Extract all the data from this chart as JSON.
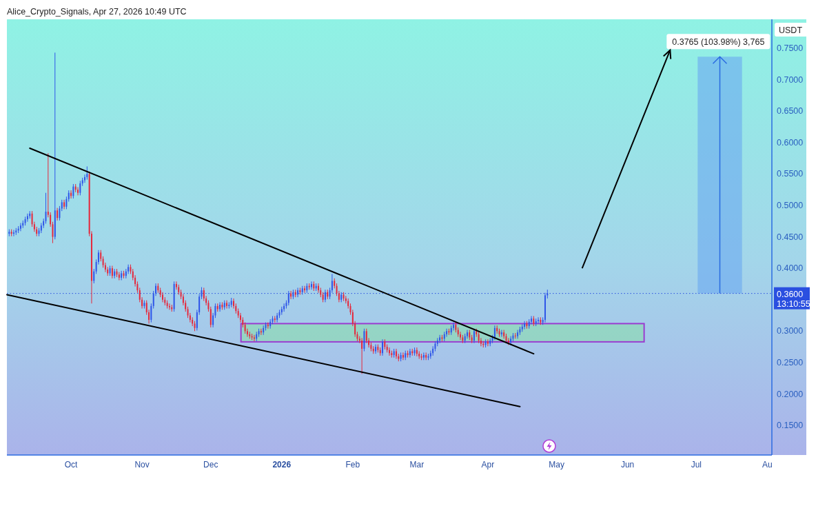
{
  "chart_data": {
    "type": "candlestick",
    "title": "Alice_Crypto_Signals, Apr 27, 2026 10:49 UTC",
    "ylabel": "USDT",
    "xlim": [
      "2025-09-03",
      "2026-08-03"
    ],
    "xticks": [
      {
        "value": "2025-10-01",
        "label": "Oct"
      },
      {
        "value": "2025-11-01",
        "label": "Nov"
      },
      {
        "value": "2025-12-01",
        "label": "Dec"
      },
      {
        "value": "2026-01-01",
        "label": "2026"
      },
      {
        "value": "2026-02-01",
        "label": "Feb"
      },
      {
        "value": "2026-03-01",
        "label": "Mar"
      },
      {
        "value": "2026-04-01",
        "label": "Apr"
      },
      {
        "value": "2026-05-01",
        "label": "May"
      },
      {
        "value": "2026-06-01",
        "label": "Jun"
      },
      {
        "value": "2026-07-01",
        "label": "Jul"
      },
      {
        "value": "2026-08-01",
        "label": "Au"
      }
    ],
    "ylim": [
      0.103,
      0.796
    ],
    "yticks": [
      {
        "value": 0.15,
        "label": "0.1500"
      },
      {
        "value": 0.2,
        "label": "0.2000"
      },
      {
        "value": 0.25,
        "label": "0.2500"
      },
      {
        "value": 0.3,
        "label": "0.3000"
      },
      {
        "value": 0.4,
        "label": "0.4000"
      },
      {
        "value": 0.45,
        "label": "0.4500"
      },
      {
        "value": 0.5,
        "label": "0.5000"
      },
      {
        "value": 0.55,
        "label": "0.5500"
      },
      {
        "value": 0.6,
        "label": "0.6000"
      },
      {
        "value": 0.65,
        "label": "0.6500"
      },
      {
        "value": 0.7,
        "label": "0.7000"
      },
      {
        "value": 0.75,
        "label": "0.7500"
      }
    ],
    "x": [
      "2025-09-04",
      "2025-09-05",
      "2025-09-06",
      "2025-09-07",
      "2025-09-08",
      "2025-09-09",
      "2025-09-10",
      "2025-09-11",
      "2025-09-12",
      "2025-09-13",
      "2025-09-14",
      "2025-09-15",
      "2025-09-16",
      "2025-09-17",
      "2025-09-18",
      "2025-09-19",
      "2025-09-20",
      "2025-09-21",
      "2025-09-22",
      "2025-09-23",
      "2025-09-24",
      "2025-09-25",
      "2025-09-26",
      "2025-09-27",
      "2025-09-28",
      "2025-09-29",
      "2025-09-30",
      "2025-10-01",
      "2025-10-02",
      "2025-10-03",
      "2025-10-04",
      "2025-10-05",
      "2025-10-06",
      "2025-10-07",
      "2025-10-08",
      "2025-10-09",
      "2025-10-10",
      "2025-10-11",
      "2025-10-12",
      "2025-10-13",
      "2025-10-14",
      "2025-10-15",
      "2025-10-16",
      "2025-10-17",
      "2025-10-18",
      "2025-10-19",
      "2025-10-20",
      "2025-10-21",
      "2025-10-22",
      "2025-10-23",
      "2025-10-24",
      "2025-10-25",
      "2025-10-26",
      "2025-10-27",
      "2025-10-28",
      "2025-10-29",
      "2025-10-30",
      "2025-10-31",
      "2025-11-01",
      "2025-11-02",
      "2025-11-03",
      "2025-11-04",
      "2025-11-05",
      "2025-11-06",
      "2025-11-07",
      "2025-11-08",
      "2025-11-09",
      "2025-11-10",
      "2025-11-11",
      "2025-11-12",
      "2025-11-13",
      "2025-11-14",
      "2025-11-15",
      "2025-11-16",
      "2025-11-17",
      "2025-11-18",
      "2025-11-19",
      "2025-11-20",
      "2025-11-21",
      "2025-11-22",
      "2025-11-23",
      "2025-11-24",
      "2025-11-25",
      "2025-11-26",
      "2025-11-27",
      "2025-11-28",
      "2025-11-29",
      "2025-11-30",
      "2025-12-01",
      "2025-12-02",
      "2025-12-03",
      "2025-12-04",
      "2025-12-05",
      "2025-12-06",
      "2025-12-07",
      "2025-12-08",
      "2025-12-09",
      "2025-12-10",
      "2025-12-11",
      "2025-12-12",
      "2025-12-13",
      "2025-12-14",
      "2025-12-15",
      "2025-12-16",
      "2025-12-17",
      "2025-12-18",
      "2025-12-19",
      "2025-12-20",
      "2025-12-21",
      "2025-12-22",
      "2025-12-23",
      "2025-12-24",
      "2025-12-25",
      "2025-12-26",
      "2025-12-27",
      "2025-12-28",
      "2025-12-29",
      "2025-12-30",
      "2025-12-31",
      "2026-01-01",
      "2026-01-02",
      "2026-01-03",
      "2026-01-04",
      "2026-01-05",
      "2026-01-06",
      "2026-01-07",
      "2026-01-08",
      "2026-01-09",
      "2026-01-10",
      "2026-01-11",
      "2026-01-12",
      "2026-01-13",
      "2026-01-14",
      "2026-01-15",
      "2026-01-16",
      "2026-01-17",
      "2026-01-18",
      "2026-01-19",
      "2026-01-20",
      "2026-01-21",
      "2026-01-22",
      "2026-01-23",
      "2026-01-24",
      "2026-01-25",
      "2026-01-26",
      "2026-01-27",
      "2026-01-28",
      "2026-01-29",
      "2026-01-30",
      "2026-01-31",
      "2026-02-01",
      "2026-02-02",
      "2026-02-03",
      "2026-02-04",
      "2026-02-05",
      "2026-02-06",
      "2026-02-07",
      "2026-02-08",
      "2026-02-09",
      "2026-02-10",
      "2026-02-11",
      "2026-02-12",
      "2026-02-13",
      "2026-02-14",
      "2026-02-15",
      "2026-02-16",
      "2026-02-17",
      "2026-02-18",
      "2026-02-19",
      "2026-02-20",
      "2026-02-21",
      "2026-02-22",
      "2026-02-23",
      "2026-02-24",
      "2026-02-25",
      "2026-02-26",
      "2026-02-27",
      "2026-02-28",
      "2026-03-01",
      "2026-03-02",
      "2026-03-03",
      "2026-03-04",
      "2026-03-05",
      "2026-03-06",
      "2026-03-07",
      "2026-03-08",
      "2026-03-09",
      "2026-03-10",
      "2026-03-11",
      "2026-03-12",
      "2026-03-13",
      "2026-03-14",
      "2026-03-15",
      "2026-03-16",
      "2026-03-17",
      "2026-03-18",
      "2026-03-19",
      "2026-03-20",
      "2026-03-21",
      "2026-03-22",
      "2026-03-23",
      "2026-03-24",
      "2026-03-25",
      "2026-03-26",
      "2026-03-27",
      "2026-03-28",
      "2026-03-29",
      "2026-03-30",
      "2026-03-31",
      "2026-04-01",
      "2026-04-02",
      "2026-04-03",
      "2026-04-04",
      "2026-04-05",
      "2026-04-06",
      "2026-04-07",
      "2026-04-08",
      "2026-04-09",
      "2026-04-10",
      "2026-04-11",
      "2026-04-12",
      "2026-04-13",
      "2026-04-14",
      "2026-04-15",
      "2026-04-16",
      "2026-04-17",
      "2026-04-18",
      "2026-04-19",
      "2026-04-20",
      "2026-04-21",
      "2026-04-22",
      "2026-04-23",
      "2026-04-24",
      "2026-04-25",
      "2026-04-26",
      "2026-04-27"
    ],
    "ohlc": [
      [
        0.455,
        0.462,
        0.451,
        0.458
      ],
      [
        0.458,
        0.462,
        0.451,
        0.455
      ],
      [
        0.455,
        0.461,
        0.451,
        0.457
      ],
      [
        0.457,
        0.464,
        0.453,
        0.46
      ],
      [
        0.46,
        0.467,
        0.456,
        0.463
      ],
      [
        0.463,
        0.472,
        0.459,
        0.468
      ],
      [
        0.468,
        0.476,
        0.464,
        0.472
      ],
      [
        0.472,
        0.482,
        0.468,
        0.478
      ],
      [
        0.478,
        0.487,
        0.474,
        0.483
      ],
      [
        0.483,
        0.491,
        0.479,
        0.487
      ],
      [
        0.487,
        0.491,
        0.466,
        0.47
      ],
      [
        0.47,
        0.474,
        0.458,
        0.462
      ],
      [
        0.462,
        0.466,
        0.451,
        0.455
      ],
      [
        0.455,
        0.464,
        0.451,
        0.46
      ],
      [
        0.46,
        0.472,
        0.456,
        0.468
      ],
      [
        0.468,
        0.479,
        0.464,
        0.475
      ],
      [
        0.475,
        0.52,
        0.471,
        0.49
      ],
      [
        0.49,
        0.583,
        0.481,
        0.485
      ],
      [
        0.485,
        0.489,
        0.466,
        0.47
      ],
      [
        0.47,
        0.474,
        0.44,
        0.45
      ],
      [
        0.45,
        0.743,
        0.446,
        0.492
      ],
      [
        0.492,
        0.496,
        0.476,
        0.48
      ],
      [
        0.48,
        0.499,
        0.476,
        0.495
      ],
      [
        0.495,
        0.509,
        0.491,
        0.505
      ],
      [
        0.505,
        0.509,
        0.494,
        0.498
      ],
      [
        0.498,
        0.514,
        0.494,
        0.51
      ],
      [
        0.51,
        0.524,
        0.506,
        0.52
      ],
      [
        0.52,
        0.524,
        0.511,
        0.515
      ],
      [
        0.515,
        0.534,
        0.511,
        0.53
      ],
      [
        0.53,
        0.534,
        0.521,
        0.525
      ],
      [
        0.525,
        0.529,
        0.516,
        0.52
      ],
      [
        0.52,
        0.539,
        0.516,
        0.535
      ],
      [
        0.535,
        0.544,
        0.531,
        0.54
      ],
      [
        0.54,
        0.549,
        0.536,
        0.545
      ],
      [
        0.545,
        0.562,
        0.541,
        0.55
      ],
      [
        0.55,
        0.554,
        0.451,
        0.455
      ],
      [
        0.455,
        0.459,
        0.344,
        0.38
      ],
      [
        0.38,
        0.399,
        0.376,
        0.395
      ],
      [
        0.395,
        0.414,
        0.391,
        0.41
      ],
      [
        0.41,
        0.429,
        0.406,
        0.425
      ],
      [
        0.425,
        0.429,
        0.411,
        0.415
      ],
      [
        0.415,
        0.419,
        0.401,
        0.405
      ],
      [
        0.405,
        0.409,
        0.394,
        0.398
      ],
      [
        0.398,
        0.402,
        0.388,
        0.392
      ],
      [
        0.392,
        0.404,
        0.388,
        0.4
      ],
      [
        0.4,
        0.404,
        0.384,
        0.388
      ],
      [
        0.388,
        0.399,
        0.384,
        0.395
      ],
      [
        0.395,
        0.399,
        0.386,
        0.39
      ],
      [
        0.39,
        0.394,
        0.381,
        0.385
      ],
      [
        0.385,
        0.396,
        0.381,
        0.392
      ],
      [
        0.392,
        0.396,
        0.384,
        0.388
      ],
      [
        0.388,
        0.399,
        0.384,
        0.395
      ],
      [
        0.395,
        0.406,
        0.391,
        0.402
      ],
      [
        0.402,
        0.406,
        0.391,
        0.395
      ],
      [
        0.395,
        0.399,
        0.381,
        0.385
      ],
      [
        0.385,
        0.389,
        0.371,
        0.375
      ],
      [
        0.375,
        0.379,
        0.361,
        0.365
      ],
      [
        0.365,
        0.369,
        0.346,
        0.35
      ],
      [
        0.35,
        0.354,
        0.336,
        0.34
      ],
      [
        0.34,
        0.349,
        0.336,
        0.345
      ],
      [
        0.345,
        0.349,
        0.326,
        0.33
      ],
      [
        0.33,
        0.334,
        0.312,
        0.318
      ],
      [
        0.318,
        0.344,
        0.314,
        0.34
      ],
      [
        0.34,
        0.364,
        0.336,
        0.36
      ],
      [
        0.36,
        0.376,
        0.356,
        0.372
      ],
      [
        0.372,
        0.376,
        0.361,
        0.365
      ],
      [
        0.365,
        0.369,
        0.354,
        0.358
      ],
      [
        0.358,
        0.362,
        0.346,
        0.35
      ],
      [
        0.35,
        0.354,
        0.341,
        0.345
      ],
      [
        0.345,
        0.349,
        0.336,
        0.34
      ],
      [
        0.34,
        0.344,
        0.334,
        0.338
      ],
      [
        0.338,
        0.342,
        0.331,
        0.335
      ],
      [
        0.335,
        0.379,
        0.331,
        0.375
      ],
      [
        0.375,
        0.379,
        0.366,
        0.37
      ],
      [
        0.37,
        0.374,
        0.358,
        0.362
      ],
      [
        0.362,
        0.366,
        0.351,
        0.355
      ],
      [
        0.355,
        0.359,
        0.341,
        0.345
      ],
      [
        0.345,
        0.349,
        0.331,
        0.335
      ],
      [
        0.335,
        0.339,
        0.321,
        0.325
      ],
      [
        0.325,
        0.329,
        0.314,
        0.318
      ],
      [
        0.318,
        0.322,
        0.308,
        0.312
      ],
      [
        0.312,
        0.316,
        0.3,
        0.305
      ],
      [
        0.305,
        0.334,
        0.301,
        0.33
      ],
      [
        0.33,
        0.359,
        0.326,
        0.355
      ],
      [
        0.355,
        0.37,
        0.351,
        0.365
      ],
      [
        0.365,
        0.369,
        0.348,
        0.352
      ],
      [
        0.352,
        0.356,
        0.341,
        0.345
      ],
      [
        0.345,
        0.349,
        0.331,
        0.335
      ],
      [
        0.335,
        0.339,
        0.306,
        0.31
      ],
      [
        0.31,
        0.329,
        0.306,
        0.325
      ],
      [
        0.325,
        0.344,
        0.321,
        0.34
      ],
      [
        0.34,
        0.344,
        0.331,
        0.335
      ],
      [
        0.335,
        0.346,
        0.331,
        0.342
      ],
      [
        0.342,
        0.346,
        0.334,
        0.338
      ],
      [
        0.338,
        0.349,
        0.334,
        0.345
      ],
      [
        0.345,
        0.349,
        0.336,
        0.34
      ],
      [
        0.34,
        0.346,
        0.336,
        0.342
      ],
      [
        0.342,
        0.353,
        0.338,
        0.348
      ],
      [
        0.348,
        0.352,
        0.336,
        0.34
      ],
      [
        0.34,
        0.344,
        0.328,
        0.332
      ],
      [
        0.332,
        0.336,
        0.321,
        0.325
      ],
      [
        0.325,
        0.329,
        0.314,
        0.318
      ],
      [
        0.318,
        0.322,
        0.306,
        0.31
      ],
      [
        0.31,
        0.314,
        0.296,
        0.3
      ],
      [
        0.3,
        0.304,
        0.291,
        0.295
      ],
      [
        0.295,
        0.299,
        0.288,
        0.292
      ],
      [
        0.292,
        0.296,
        0.286,
        0.29
      ],
      [
        0.29,
        0.294,
        0.284,
        0.288
      ],
      [
        0.288,
        0.299,
        0.284,
        0.295
      ],
      [
        0.295,
        0.304,
        0.291,
        0.3
      ],
      [
        0.3,
        0.304,
        0.294,
        0.298
      ],
      [
        0.298,
        0.309,
        0.294,
        0.305
      ],
      [
        0.305,
        0.314,
        0.301,
        0.31
      ],
      [
        0.31,
        0.314,
        0.304,
        0.308
      ],
      [
        0.308,
        0.319,
        0.304,
        0.315
      ],
      [
        0.315,
        0.324,
        0.311,
        0.32
      ],
      [
        0.32,
        0.324,
        0.314,
        0.318
      ],
      [
        0.318,
        0.329,
        0.314,
        0.325
      ],
      [
        0.325,
        0.334,
        0.321,
        0.33
      ],
      [
        0.33,
        0.339,
        0.326,
        0.335
      ],
      [
        0.335,
        0.344,
        0.331,
        0.34
      ],
      [
        0.34,
        0.349,
        0.336,
        0.345
      ],
      [
        0.345,
        0.364,
        0.341,
        0.36
      ],
      [
        0.36,
        0.364,
        0.351,
        0.355
      ],
      [
        0.355,
        0.366,
        0.351,
        0.362
      ],
      [
        0.362,
        0.366,
        0.354,
        0.358
      ],
      [
        0.358,
        0.369,
        0.354,
        0.365
      ],
      [
        0.365,
        0.369,
        0.358,
        0.362
      ],
      [
        0.362,
        0.372,
        0.358,
        0.368
      ],
      [
        0.368,
        0.372,
        0.361,
        0.365
      ],
      [
        0.365,
        0.376,
        0.361,
        0.372
      ],
      [
        0.372,
        0.376,
        0.366,
        0.37
      ],
      [
        0.37,
        0.379,
        0.366,
        0.375
      ],
      [
        0.375,
        0.379,
        0.364,
        0.368
      ],
      [
        0.368,
        0.376,
        0.364,
        0.372
      ],
      [
        0.372,
        0.376,
        0.361,
        0.365
      ],
      [
        0.365,
        0.369,
        0.354,
        0.358
      ],
      [
        0.358,
        0.362,
        0.346,
        0.35
      ],
      [
        0.35,
        0.366,
        0.346,
        0.362
      ],
      [
        0.362,
        0.366,
        0.351,
        0.355
      ],
      [
        0.355,
        0.369,
        0.351,
        0.365
      ],
      [
        0.365,
        0.391,
        0.361,
        0.38
      ],
      [
        0.38,
        0.384,
        0.368,
        0.372
      ],
      [
        0.372,
        0.376,
        0.356,
        0.36
      ],
      [
        0.36,
        0.364,
        0.346,
        0.35
      ],
      [
        0.35,
        0.362,
        0.346,
        0.358
      ],
      [
        0.358,
        0.362,
        0.348,
        0.352
      ],
      [
        0.352,
        0.356,
        0.344,
        0.348
      ],
      [
        0.348,
        0.352,
        0.336,
        0.34
      ],
      [
        0.34,
        0.344,
        0.326,
        0.33
      ],
      [
        0.33,
        0.334,
        0.308,
        0.312
      ],
      [
        0.312,
        0.316,
        0.291,
        0.295
      ],
      [
        0.295,
        0.299,
        0.284,
        0.288
      ],
      [
        0.288,
        0.292,
        0.281,
        0.285
      ],
      [
        0.285,
        0.289,
        0.232,
        0.272
      ],
      [
        0.272,
        0.304,
        0.268,
        0.3
      ],
      [
        0.3,
        0.304,
        0.281,
        0.285
      ],
      [
        0.285,
        0.289,
        0.274,
        0.278
      ],
      [
        0.278,
        0.282,
        0.268,
        0.272
      ],
      [
        0.272,
        0.276,
        0.264,
        0.268
      ],
      [
        0.268,
        0.279,
        0.264,
        0.275
      ],
      [
        0.275,
        0.279,
        0.266,
        0.27
      ],
      [
        0.27,
        0.274,
        0.261,
        0.265
      ],
      [
        0.265,
        0.287,
        0.261,
        0.283
      ],
      [
        0.283,
        0.287,
        0.271,
        0.275
      ],
      [
        0.275,
        0.279,
        0.266,
        0.27
      ],
      [
        0.27,
        0.274,
        0.261,
        0.265
      ],
      [
        0.265,
        0.269,
        0.258,
        0.262
      ],
      [
        0.262,
        0.272,
        0.258,
        0.268
      ],
      [
        0.268,
        0.272,
        0.256,
        0.26
      ],
      [
        0.26,
        0.264,
        0.252,
        0.256
      ],
      [
        0.256,
        0.266,
        0.252,
        0.262
      ],
      [
        0.262,
        0.266,
        0.254,
        0.258
      ],
      [
        0.258,
        0.269,
        0.254,
        0.265
      ],
      [
        0.265,
        0.269,
        0.258,
        0.262
      ],
      [
        0.262,
        0.272,
        0.258,
        0.268
      ],
      [
        0.268,
        0.272,
        0.261,
        0.265
      ],
      [
        0.265,
        0.274,
        0.261,
        0.27
      ],
      [
        0.27,
        0.274,
        0.26,
        0.264
      ],
      [
        0.264,
        0.268,
        0.256,
        0.26
      ],
      [
        0.26,
        0.264,
        0.254,
        0.258
      ],
      [
        0.258,
        0.266,
        0.254,
        0.262
      ],
      [
        0.262,
        0.266,
        0.254,
        0.258
      ],
      [
        0.258,
        0.264,
        0.254,
        0.26
      ],
      [
        0.26,
        0.269,
        0.256,
        0.265
      ],
      [
        0.265,
        0.276,
        0.261,
        0.272
      ],
      [
        0.272,
        0.284,
        0.268,
        0.28
      ],
      [
        0.28,
        0.289,
        0.276,
        0.285
      ],
      [
        0.285,
        0.294,
        0.281,
        0.29
      ],
      [
        0.29,
        0.294,
        0.284,
        0.288
      ],
      [
        0.288,
        0.299,
        0.284,
        0.295
      ],
      [
        0.295,
        0.304,
        0.291,
        0.3
      ],
      [
        0.3,
        0.304,
        0.294,
        0.298
      ],
      [
        0.298,
        0.309,
        0.294,
        0.305
      ],
      [
        0.305,
        0.314,
        0.301,
        0.31
      ],
      [
        0.31,
        0.314,
        0.298,
        0.302
      ],
      [
        0.302,
        0.306,
        0.291,
        0.295
      ],
      [
        0.295,
        0.299,
        0.286,
        0.29
      ],
      [
        0.29,
        0.294,
        0.281,
        0.285
      ],
      [
        0.285,
        0.296,
        0.281,
        0.292
      ],
      [
        0.292,
        0.302,
        0.288,
        0.298
      ],
      [
        0.298,
        0.302,
        0.286,
        0.29
      ],
      [
        0.29,
        0.294,
        0.281,
        0.285
      ],
      [
        0.285,
        0.304,
        0.281,
        0.3
      ],
      [
        0.3,
        0.304,
        0.291,
        0.295
      ],
      [
        0.295,
        0.299,
        0.281,
        0.285
      ],
      [
        0.285,
        0.289,
        0.276,
        0.28
      ],
      [
        0.28,
        0.284,
        0.274,
        0.278
      ],
      [
        0.278,
        0.287,
        0.274,
        0.283
      ],
      [
        0.283,
        0.287,
        0.276,
        0.28
      ],
      [
        0.28,
        0.289,
        0.276,
        0.285
      ],
      [
        0.285,
        0.294,
        0.281,
        0.29
      ],
      [
        0.29,
        0.309,
        0.286,
        0.305
      ],
      [
        0.305,
        0.309,
        0.296,
        0.3
      ],
      [
        0.3,
        0.304,
        0.291,
        0.295
      ],
      [
        0.295,
        0.302,
        0.291,
        0.298
      ],
      [
        0.298,
        0.302,
        0.288,
        0.292
      ],
      [
        0.292,
        0.296,
        0.281,
        0.285
      ],
      [
        0.285,
        0.289,
        0.278,
        0.282
      ],
      [
        0.282,
        0.292,
        0.278,
        0.288
      ],
      [
        0.288,
        0.297,
        0.284,
        0.293
      ],
      [
        0.293,
        0.297,
        0.288,
        0.292
      ],
      [
        0.292,
        0.302,
        0.288,
        0.298
      ],
      [
        0.298,
        0.307,
        0.294,
        0.303
      ],
      [
        0.303,
        0.311,
        0.299,
        0.307
      ],
      [
        0.307,
        0.316,
        0.303,
        0.312
      ],
      [
        0.312,
        0.316,
        0.304,
        0.308
      ],
      [
        0.308,
        0.319,
        0.304,
        0.315
      ],
      [
        0.315,
        0.324,
        0.311,
        0.32
      ],
      [
        0.32,
        0.324,
        0.308,
        0.312
      ],
      [
        0.312,
        0.32,
        0.308,
        0.316
      ],
      [
        0.316,
        0.322,
        0.312,
        0.318
      ],
      [
        0.318,
        0.322,
        0.31,
        0.314
      ],
      [
        0.314,
        0.322,
        0.31,
        0.318
      ],
      [
        0.318,
        0.361,
        0.314,
        0.357
      ],
      [
        0.357,
        0.366,
        0.352,
        0.36
      ]
    ],
    "series": [
      {
        "type": "line",
        "color": "#000000",
        "x": [
          "2025-09-13",
          "2026-04-21"
        ],
        "values": [
          0.591,
          0.264
        ]
      },
      {
        "type": "line",
        "color": "#000000",
        "x": [
          "2025-09-03",
          "2026-04-15"
        ],
        "values": [
          0.358,
          0.18
        ]
      }
    ],
    "ref_lines": [
      {
        "axis": "y",
        "value": 0.36,
        "label": "0.3600",
        "color": "#2a4fe0",
        "line_style": "dotted"
      }
    ],
    "bands": [
      {
        "axis": "y",
        "from": 0.283,
        "to": 0.312,
        "color": "#8fd8b8"
      },
      {
        "axis": "y",
        "from": 0.36,
        "to": 0.7365,
        "label": "0.3765 (103.98%) 3,765",
        "color": "#6aa8f0"
      }
    ],
    "annotations": [
      "13:10:55"
    ]
  }
}
